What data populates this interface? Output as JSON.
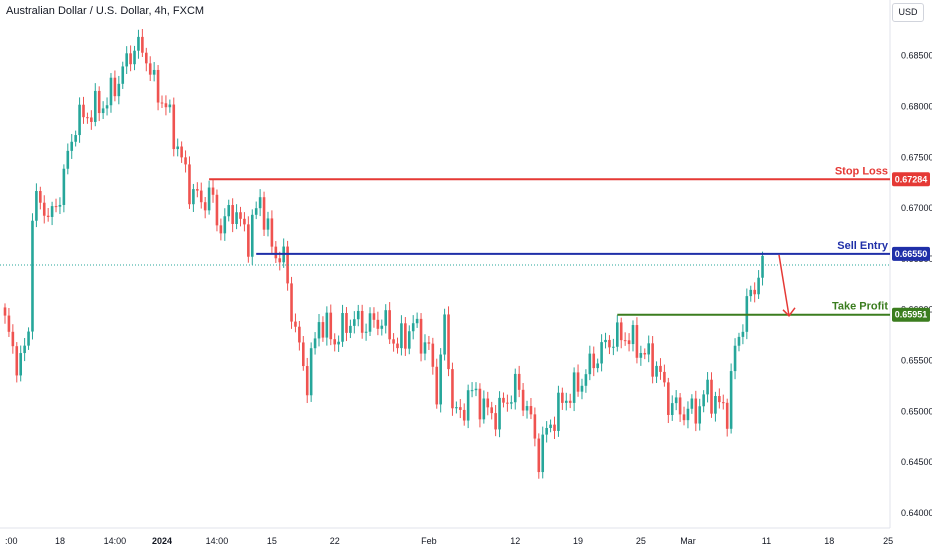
{
  "header": {
    "title": "Australian Dollar / U.S. Dollar, 4h, FXCM",
    "currency_button": "USD"
  },
  "colors": {
    "up_candle": "#26a69a",
    "down_candle": "#ef5350",
    "stop_loss": "#e53935",
    "sell_entry": "#1f2fa8",
    "take_profit": "#3b7d1f",
    "arrow": "#e53935",
    "dotted_price": "#26a69a"
  },
  "chart_data": {
    "type": "candlestick",
    "ylim": [
      0.6395,
      0.6895
    ],
    "y_ticks": [
      "0.68500",
      "0.68000",
      "0.67500",
      "0.67000",
      "0.66500",
      "0.66000",
      "0.65500",
      "0.65000",
      "0.64500",
      "0.64000"
    ],
    "y_tick_values": [
      0.685,
      0.68,
      0.675,
      0.67,
      0.665,
      0.66,
      0.655,
      0.65,
      0.645,
      0.64
    ],
    "x_ticks": [
      ":00",
      "18",
      "14:00",
      "2024",
      "14:00",
      "15",
      "22",
      "Feb",
      "12",
      "19",
      "25",
      "Mar",
      "11",
      "18",
      "25"
    ],
    "x_tick_index": [
      0,
      14,
      28,
      40,
      54,
      68,
      84,
      108,
      130,
      146,
      162,
      174,
      194,
      210,
      225
    ],
    "candle_count": 194,
    "levels": [
      {
        "name": "Stop Loss",
        "price": 0.67284,
        "label": "0.67284",
        "start_index": 52
      },
      {
        "name": "Sell Entry",
        "price": 0.6655,
        "label": "0.66550",
        "start_index": 64
      },
      {
        "name": "Take Profit",
        "price": 0.65951,
        "label": "0.65951",
        "start_index": 156
      }
    ],
    "current_price": 0.6644,
    "anchors": [
      [
        0,
        0.6588
      ],
      [
        2,
        0.656
      ],
      [
        4,
        0.6545
      ],
      [
        6,
        0.658
      ],
      [
        7,
        0.67
      ],
      [
        9,
        0.6705
      ],
      [
        12,
        0.669
      ],
      [
        14,
        0.6715
      ],
      [
        18,
        0.6785
      ],
      [
        22,
        0.6795
      ],
      [
        26,
        0.6805
      ],
      [
        30,
        0.6835
      ],
      [
        33,
        0.686
      ],
      [
        36,
        0.685
      ],
      [
        38,
        0.682
      ],
      [
        41,
        0.68
      ],
      [
        44,
        0.676
      ],
      [
        47,
        0.672
      ],
      [
        50,
        0.6705
      ],
      [
        52,
        0.6715
      ],
      [
        55,
        0.668
      ],
      [
        58,
        0.67
      ],
      [
        62,
        0.667
      ],
      [
        65,
        0.671
      ],
      [
        68,
        0.666
      ],
      [
        71,
        0.665
      ],
      [
        73,
        0.66
      ],
      [
        75,
        0.656
      ],
      [
        77,
        0.653
      ],
      [
        80,
        0.659
      ],
      [
        84,
        0.657
      ],
      [
        88,
        0.659
      ],
      [
        92,
        0.6585
      ],
      [
        96,
        0.659
      ],
      [
        100,
        0.6565
      ],
      [
        104,
        0.6585
      ],
      [
        108,
        0.656
      ],
      [
        110,
        0.652
      ],
      [
        112,
        0.6585
      ],
      [
        114,
        0.651
      ],
      [
        116,
        0.649
      ],
      [
        118,
        0.652
      ],
      [
        121,
        0.651
      ],
      [
        124,
        0.6495
      ],
      [
        127,
        0.6505
      ],
      [
        130,
        0.6525
      ],
      [
        133,
        0.6505
      ],
      [
        136,
        0.6455
      ],
      [
        138,
        0.648
      ],
      [
        142,
        0.651
      ],
      [
        146,
        0.6525
      ],
      [
        150,
        0.655
      ],
      [
        154,
        0.657
      ],
      [
        158,
        0.6575
      ],
      [
        162,
        0.656
      ],
      [
        166,
        0.6545
      ],
      [
        169,
        0.651
      ],
      [
        172,
        0.65
      ],
      [
        176,
        0.65
      ],
      [
        179,
        0.652
      ],
      [
        182,
        0.6505
      ],
      [
        184,
        0.65
      ],
      [
        186,
        0.656
      ],
      [
        188,
        0.659
      ],
      [
        190,
        0.6615
      ],
      [
        193,
        0.6644
      ]
    ]
  }
}
